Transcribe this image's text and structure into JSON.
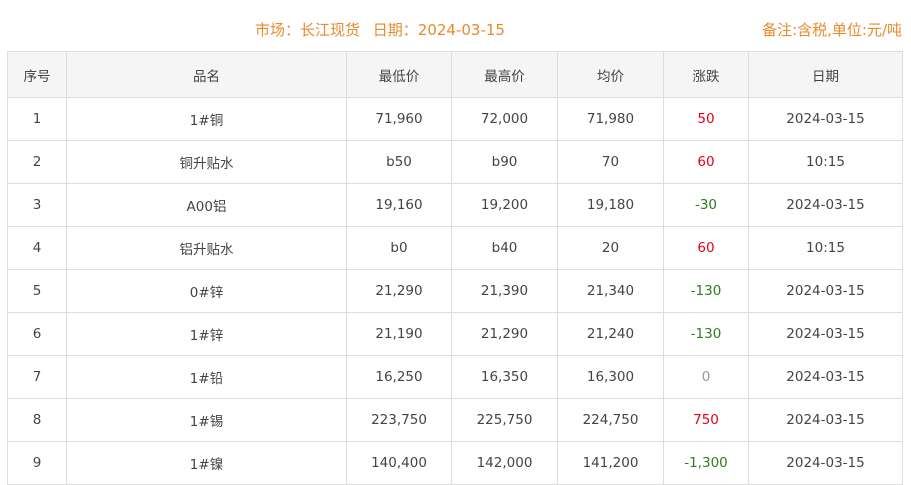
{
  "header": {
    "market": "市场：长江现货",
    "date": "日期：2024-03-15",
    "note": "备注:含税,单位:元/吨"
  },
  "columns": [
    "序号",
    "品名",
    "最低价",
    "最高价",
    "均价",
    "涨跌",
    "日期"
  ],
  "rows": [
    {
      "no": "1",
      "name": "1#铜",
      "low": "71,960",
      "high": "72,000",
      "avg": "71,980",
      "change": "50",
      "trend": "up",
      "date": "2024-03-15"
    },
    {
      "no": "2",
      "name": "铜升贴水",
      "low": "b50",
      "high": "b90",
      "avg": "70",
      "change": "60",
      "trend": "up",
      "date": "10:15"
    },
    {
      "no": "3",
      "name": "A00铝",
      "low": "19,160",
      "high": "19,200",
      "avg": "19,180",
      "change": "-30",
      "trend": "down",
      "date": "2024-03-15"
    },
    {
      "no": "4",
      "name": "铝升贴水",
      "low": "b0",
      "high": "b40",
      "avg": "20",
      "change": "60",
      "trend": "up",
      "date": "10:15"
    },
    {
      "no": "5",
      "name": "0#锌",
      "low": "21,290",
      "high": "21,390",
      "avg": "21,340",
      "change": "-130",
      "trend": "down",
      "date": "2024-03-15"
    },
    {
      "no": "6",
      "name": "1#锌",
      "low": "21,190",
      "high": "21,290",
      "avg": "21,240",
      "change": "-130",
      "trend": "down",
      "date": "2024-03-15"
    },
    {
      "no": "7",
      "name": "1#铅",
      "low": "16,250",
      "high": "16,350",
      "avg": "16,300",
      "change": "0",
      "trend": "flat",
      "date": "2024-03-15"
    },
    {
      "no": "8",
      "name": "1#锡",
      "low": "223,750",
      "high": "225,750",
      "avg": "224,750",
      "change": "750",
      "trend": "up",
      "date": "2024-03-15"
    },
    {
      "no": "9",
      "name": "1#镍",
      "low": "140,400",
      "high": "142,000",
      "avg": "141,200",
      "change": "-1,300",
      "trend": "down",
      "date": "2024-03-15"
    }
  ],
  "colors": {
    "up": "#e4001b",
    "down": "#2e7d1e",
    "flat": "#999999",
    "title": "#e98a2c"
  }
}
